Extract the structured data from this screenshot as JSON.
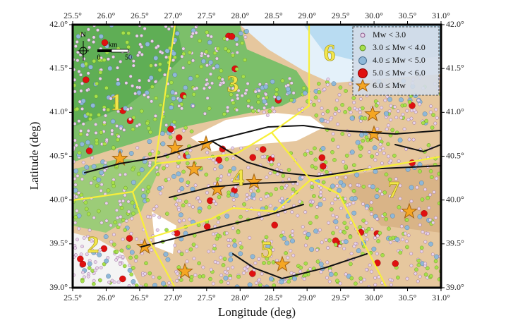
{
  "map": {
    "x_axis": {
      "label": "Longitude (deg)",
      "lim": [
        25.5,
        31.0
      ],
      "ticks": [
        {
          "value": 25.5,
          "label": "25.5°"
        },
        {
          "value": 26.0,
          "label": "26.0°"
        },
        {
          "value": 26.5,
          "label": "26.5°"
        },
        {
          "value": 27.0,
          "label": "27.0°"
        },
        {
          "value": 27.5,
          "label": "27.5°"
        },
        {
          "value": 28.0,
          "label": "28.0°"
        },
        {
          "value": 28.5,
          "label": "28.5°"
        },
        {
          "value": 29.0,
          "label": "29.0°"
        },
        {
          "value": 29.5,
          "label": "29.5°"
        },
        {
          "value": 30.0,
          "label": "30.0°"
        },
        {
          "value": 30.5,
          "label": "30.5°"
        },
        {
          "value": 31.0,
          "label": "31.0°"
        }
      ]
    },
    "y_axis": {
      "label": "Latitude (deg)",
      "lim": [
        39.0,
        42.0
      ],
      "ticks": [
        {
          "value": 39.0,
          "label": "39.0°"
        },
        {
          "value": 39.5,
          "label": "39.5°"
        },
        {
          "value": 40.0,
          "label": "40.0°"
        },
        {
          "value": 40.5,
          "label": "40.5°"
        },
        {
          "value": 41.0,
          "label": "41.0°"
        },
        {
          "value": 41.5,
          "label": "41.5°"
        },
        {
          "value": 42.0,
          "label": "42.0°"
        }
      ]
    },
    "legend": [
      "Mw < 3.0",
      "3.0 ≤ Mw < 4.0",
      "4.0 ≤ Mw < 5.0",
      "5.0 ≤ Mw < 6.0",
      "6.0 ≤ Mw"
    ],
    "zones": [
      "1",
      "2",
      "3",
      "4",
      "5",
      "6",
      "7"
    ],
    "scale_bar": {
      "unit": "km",
      "start": "0",
      "end": "50"
    },
    "north": "N"
  }
}
